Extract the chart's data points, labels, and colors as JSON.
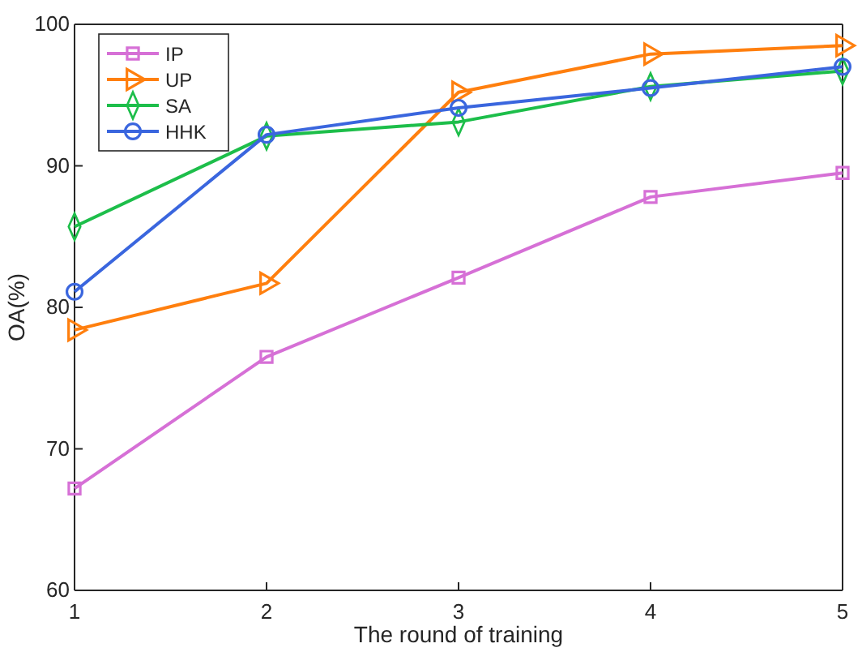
{
  "chart_data": {
    "type": "line",
    "xlabel": "The round of training",
    "ylabel": "OA(%)",
    "x": [
      1,
      2,
      3,
      4,
      5
    ],
    "xlim": [
      1,
      5
    ],
    "xticks": [
      1,
      2,
      3,
      4,
      5
    ],
    "ylim": [
      60,
      100
    ],
    "yticks": [
      60,
      70,
      80,
      90,
      100
    ],
    "grid": false,
    "legend": "top left",
    "line_style": "solid",
    "series": [
      {
        "name": "IP",
        "color": "#d670d6",
        "marker": "square",
        "values": [
          67.2,
          76.5,
          82.1,
          87.8,
          89.5
        ]
      },
      {
        "name": "UP",
        "color": "#ff7f0e",
        "marker": "triangle",
        "values": [
          78.4,
          81.7,
          95.2,
          97.9,
          98.5
        ]
      },
      {
        "name": "SA",
        "color": "#1dbe4a",
        "marker": "diamond",
        "values": [
          85.7,
          92.1,
          93.1,
          95.6,
          96.7
        ]
      },
      {
        "name": "HHK",
        "color": "#3a66de",
        "marker": "circle",
        "values": [
          81.1,
          92.2,
          94.1,
          95.5,
          97.0
        ]
      }
    ]
  }
}
